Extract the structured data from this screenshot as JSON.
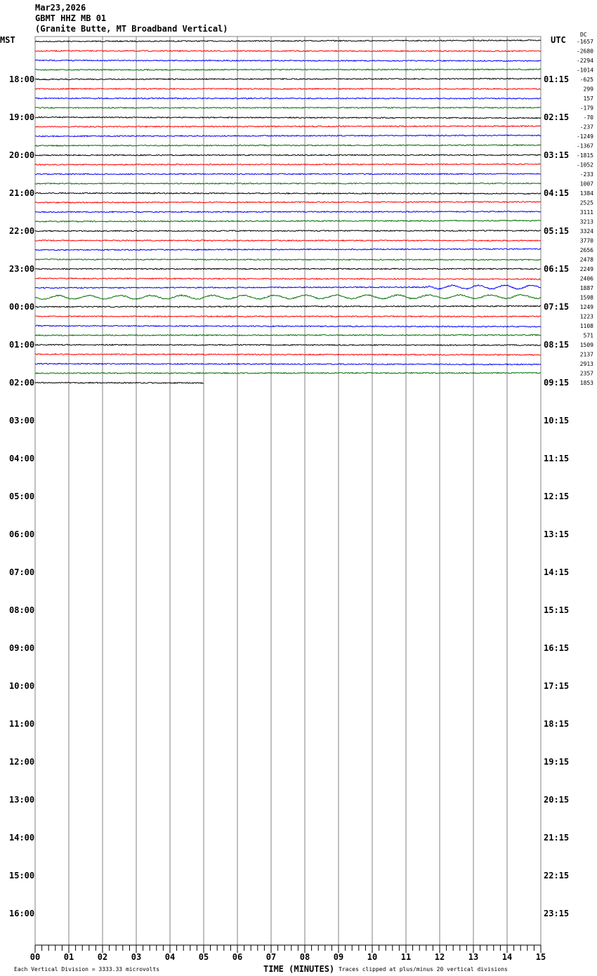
{
  "header": {
    "date": "Mar23,2026",
    "station": "GBMT HHZ MB 01",
    "description": "(Granite Butte, MT Broadband Vertical)"
  },
  "chart_data": {
    "type": "line",
    "subtype": "helicorder",
    "left_axis_title": "MST",
    "right_axis_title": "UTC",
    "dc_label": "DC",
    "left_hour_labels": [
      "18:00",
      "19:00",
      "20:00",
      "21:00",
      "22:00",
      "23:00",
      "00:00",
      "01:00",
      "02:00",
      "03:00",
      "04:00",
      "05:00",
      "06:00",
      "07:00",
      "08:00",
      "09:00",
      "10:00",
      "11:00",
      "12:00",
      "13:00",
      "14:00",
      "15:00",
      "16:00"
    ],
    "right_hour_labels": [
      "01:15",
      "02:15",
      "03:15",
      "04:15",
      "05:15",
      "06:15",
      "07:15",
      "08:15",
      "09:15",
      "10:15",
      "11:15",
      "12:15",
      "13:15",
      "14:15",
      "15:15",
      "16:15",
      "17:15",
      "18:15",
      "19:15",
      "20:15",
      "21:15",
      "22:15",
      "23:15"
    ],
    "minutes_per_line": 15,
    "lines_per_hour": 4,
    "trace_colors": [
      "#000000",
      "#ff0000",
      "#0000ff",
      "#007000"
    ],
    "dc_offsets": [
      -1657,
      -2680,
      -2294,
      -1014,
      -625,
      299,
      157,
      -179,
      -70,
      -237,
      -1249,
      -1367,
      -1815,
      -1052,
      -233,
      1007,
      1384,
      2525,
      3111,
      3213,
      3324,
      3770,
      2656,
      2478,
      2249,
      2406,
      1887,
      1598,
      1249,
      1223,
      1108,
      571,
      1509,
      2137,
      2913,
      2357,
      1853
    ],
    "last_line_end_minute": 5,
    "x_ticks": [
      "00",
      "01",
      "02",
      "03",
      "04",
      "05",
      "06",
      "07",
      "08",
      "09",
      "10",
      "11",
      "12",
      "13",
      "14",
      "15"
    ],
    "xlabel": "TIME (MINUTES)",
    "xlim": [
      0,
      15
    ],
    "scale_note": "Each Vertical Division = 3333.33 microvolts",
    "clip_note": "Traces clipped at plus/minus 20 vertical divisions",
    "grid": true
  }
}
